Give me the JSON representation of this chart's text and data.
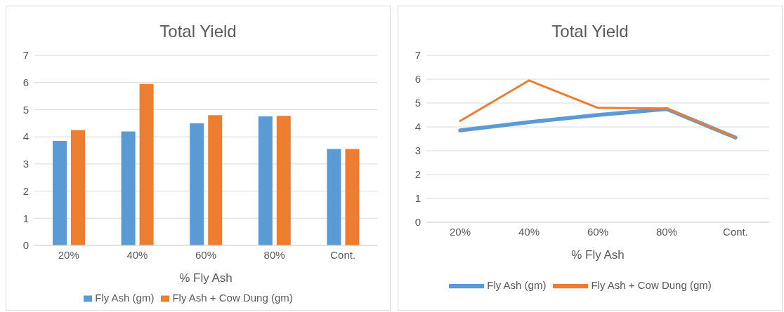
{
  "chart_data": [
    {
      "type": "bar",
      "title": "Total Yield",
      "xlabel": "% Fly Ash",
      "categories": [
        "20%",
        "40%",
        "60%",
        "80%",
        "Cont."
      ],
      "ylim": [
        0,
        7
      ],
      "yticks": [
        0,
        1,
        2,
        3,
        4,
        5,
        6,
        7
      ],
      "grid": "y",
      "legend": "bottom",
      "series": [
        {
          "name": "Fly Ash (gm)",
          "color": "#5b9bd5",
          "values": [
            3.85,
            4.2,
            4.5,
            4.75,
            3.55
          ]
        },
        {
          "name": "Fly Ash + Cow Dung (gm)",
          "color": "#ed7d31",
          "values": [
            4.25,
            5.95,
            4.8,
            4.77,
            3.55
          ]
        }
      ]
    },
    {
      "type": "line",
      "title": "Total Yield",
      "xlabel": "% Fly Ash",
      "categories": [
        "20%",
        "40%",
        "60%",
        "80%",
        "Cont."
      ],
      "ylim": [
        0,
        7
      ],
      "yticks": [
        0,
        1,
        2,
        3,
        4,
        5,
        6,
        7
      ],
      "grid": "y",
      "legend": "bottom",
      "marker": "none",
      "series": [
        {
          "name": "Fly Ash (gm)",
          "color": "#5b9bd5",
          "values": [
            3.85,
            4.2,
            4.5,
            4.75,
            3.55
          ]
        },
        {
          "name": "Fly Ash + Cow Dung (gm)",
          "color": "#ed7d31",
          "values": [
            4.25,
            5.95,
            4.8,
            4.77,
            3.55
          ]
        }
      ]
    }
  ]
}
